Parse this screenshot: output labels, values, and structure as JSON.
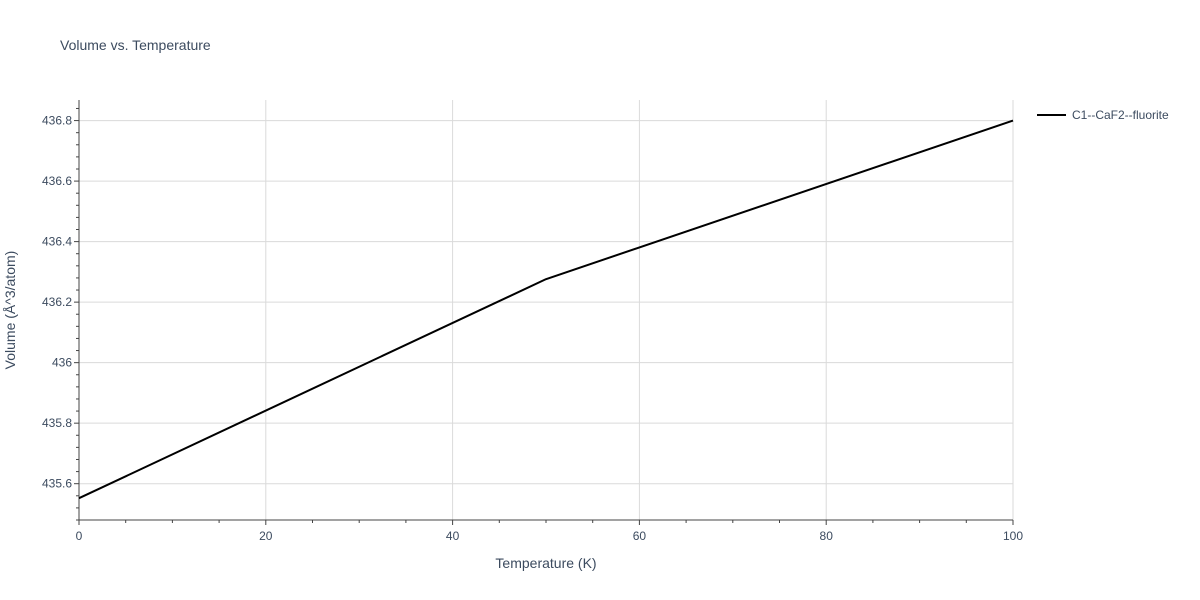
{
  "chart_data": {
    "type": "line",
    "title": "Volume vs. Temperature",
    "xlabel": "Temperature (K)",
    "ylabel": "Volume (Å^3/atom)",
    "xlim": [
      0,
      100
    ],
    "ylim": [
      435.48,
      436.868
    ],
    "x_ticks": [
      0,
      20,
      40,
      60,
      80,
      100
    ],
    "x_tick_labels": [
      "0",
      "20",
      "40",
      "60",
      "80",
      "100"
    ],
    "y_ticks": [
      435.6,
      435.8,
      436.0,
      436.2,
      436.4,
      436.6,
      436.8
    ],
    "y_tick_labels": [
      "435.6",
      "435.8",
      "436",
      "436.2",
      "436.4",
      "436.6",
      "436.8"
    ],
    "grid": true,
    "legend_position": "top-right outside",
    "series": [
      {
        "name": "C1--CaF2--fluorite",
        "color": "#000000",
        "x": [
          0,
          50,
          100
        ],
        "y": [
          435.552,
          436.276,
          436.8
        ]
      }
    ]
  }
}
